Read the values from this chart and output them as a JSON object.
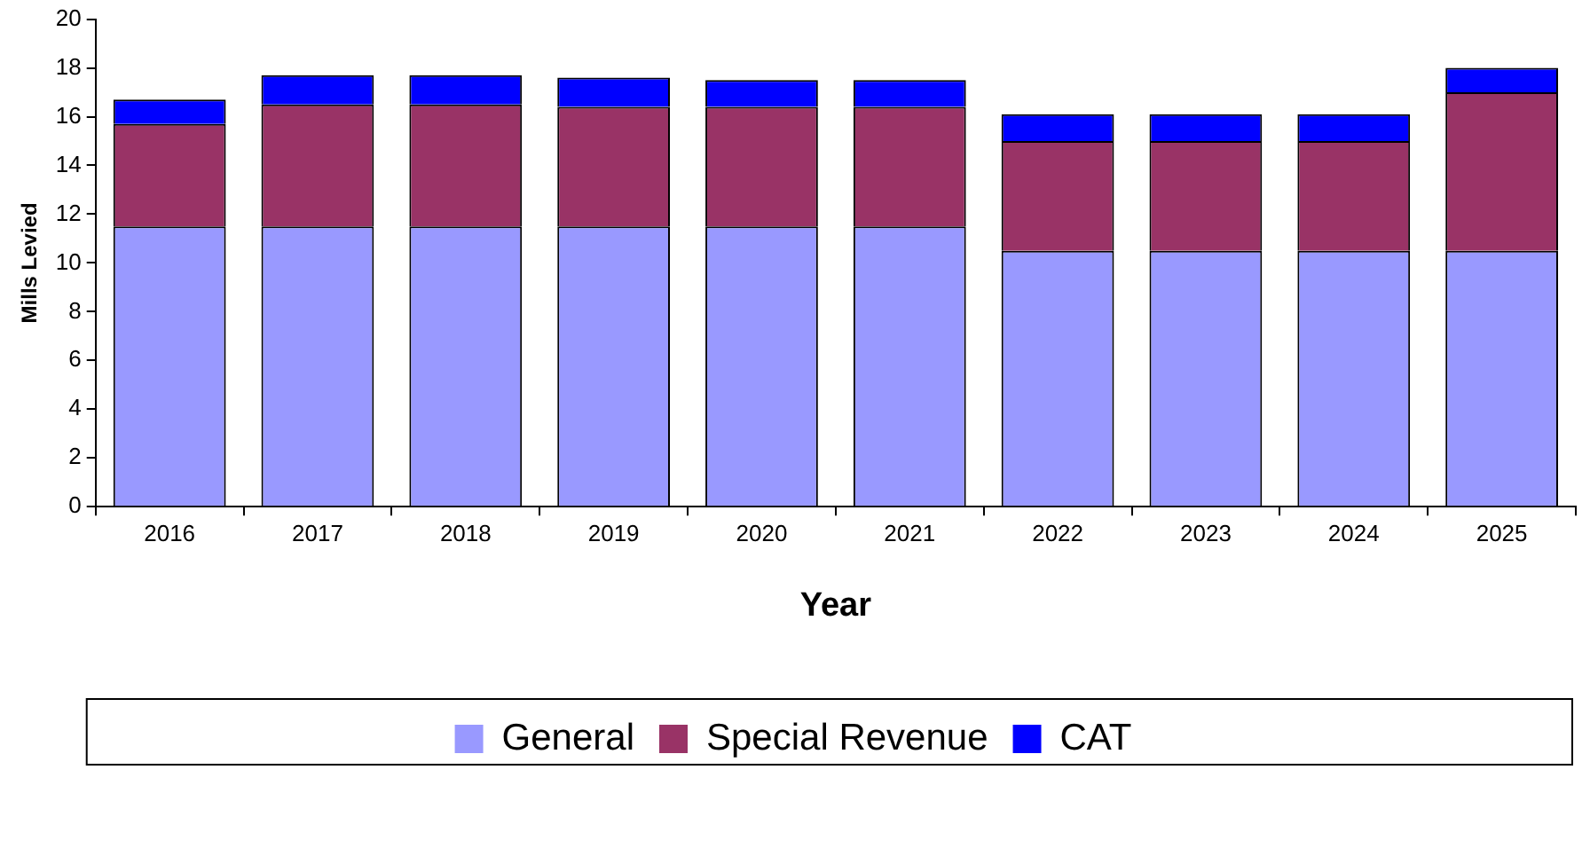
{
  "chart_data": {
    "type": "bar",
    "stacked": true,
    "ylabel": "Mills Levied",
    "xlabel": "Year",
    "categories": [
      "2016",
      "2017",
      "2018",
      "2019",
      "2020",
      "2021",
      "2022",
      "2023",
      "2024",
      "2025"
    ],
    "series": [
      {
        "name": "General",
        "color": "#9999ff",
        "values": [
          11.5,
          11.5,
          11.5,
          11.5,
          11.5,
          11.5,
          10.5,
          10.5,
          10.5,
          10.5
        ]
      },
      {
        "name": "Special Revenue",
        "color": "#993366",
        "values": [
          4.2,
          5.0,
          5.0,
          4.9,
          4.9,
          4.9,
          4.5,
          4.5,
          4.5,
          6.5
        ]
      },
      {
        "name": "CAT",
        "color": "#0000ff",
        "values": [
          1.0,
          1.2,
          1.2,
          1.2,
          1.1,
          1.1,
          1.1,
          1.1,
          1.1,
          1.0
        ]
      }
    ],
    "ylim": [
      0,
      20
    ],
    "yticks": [
      0,
      2,
      4,
      6,
      8,
      10,
      12,
      14,
      16,
      18,
      20
    ],
    "grid": false,
    "legend": "bottom"
  }
}
